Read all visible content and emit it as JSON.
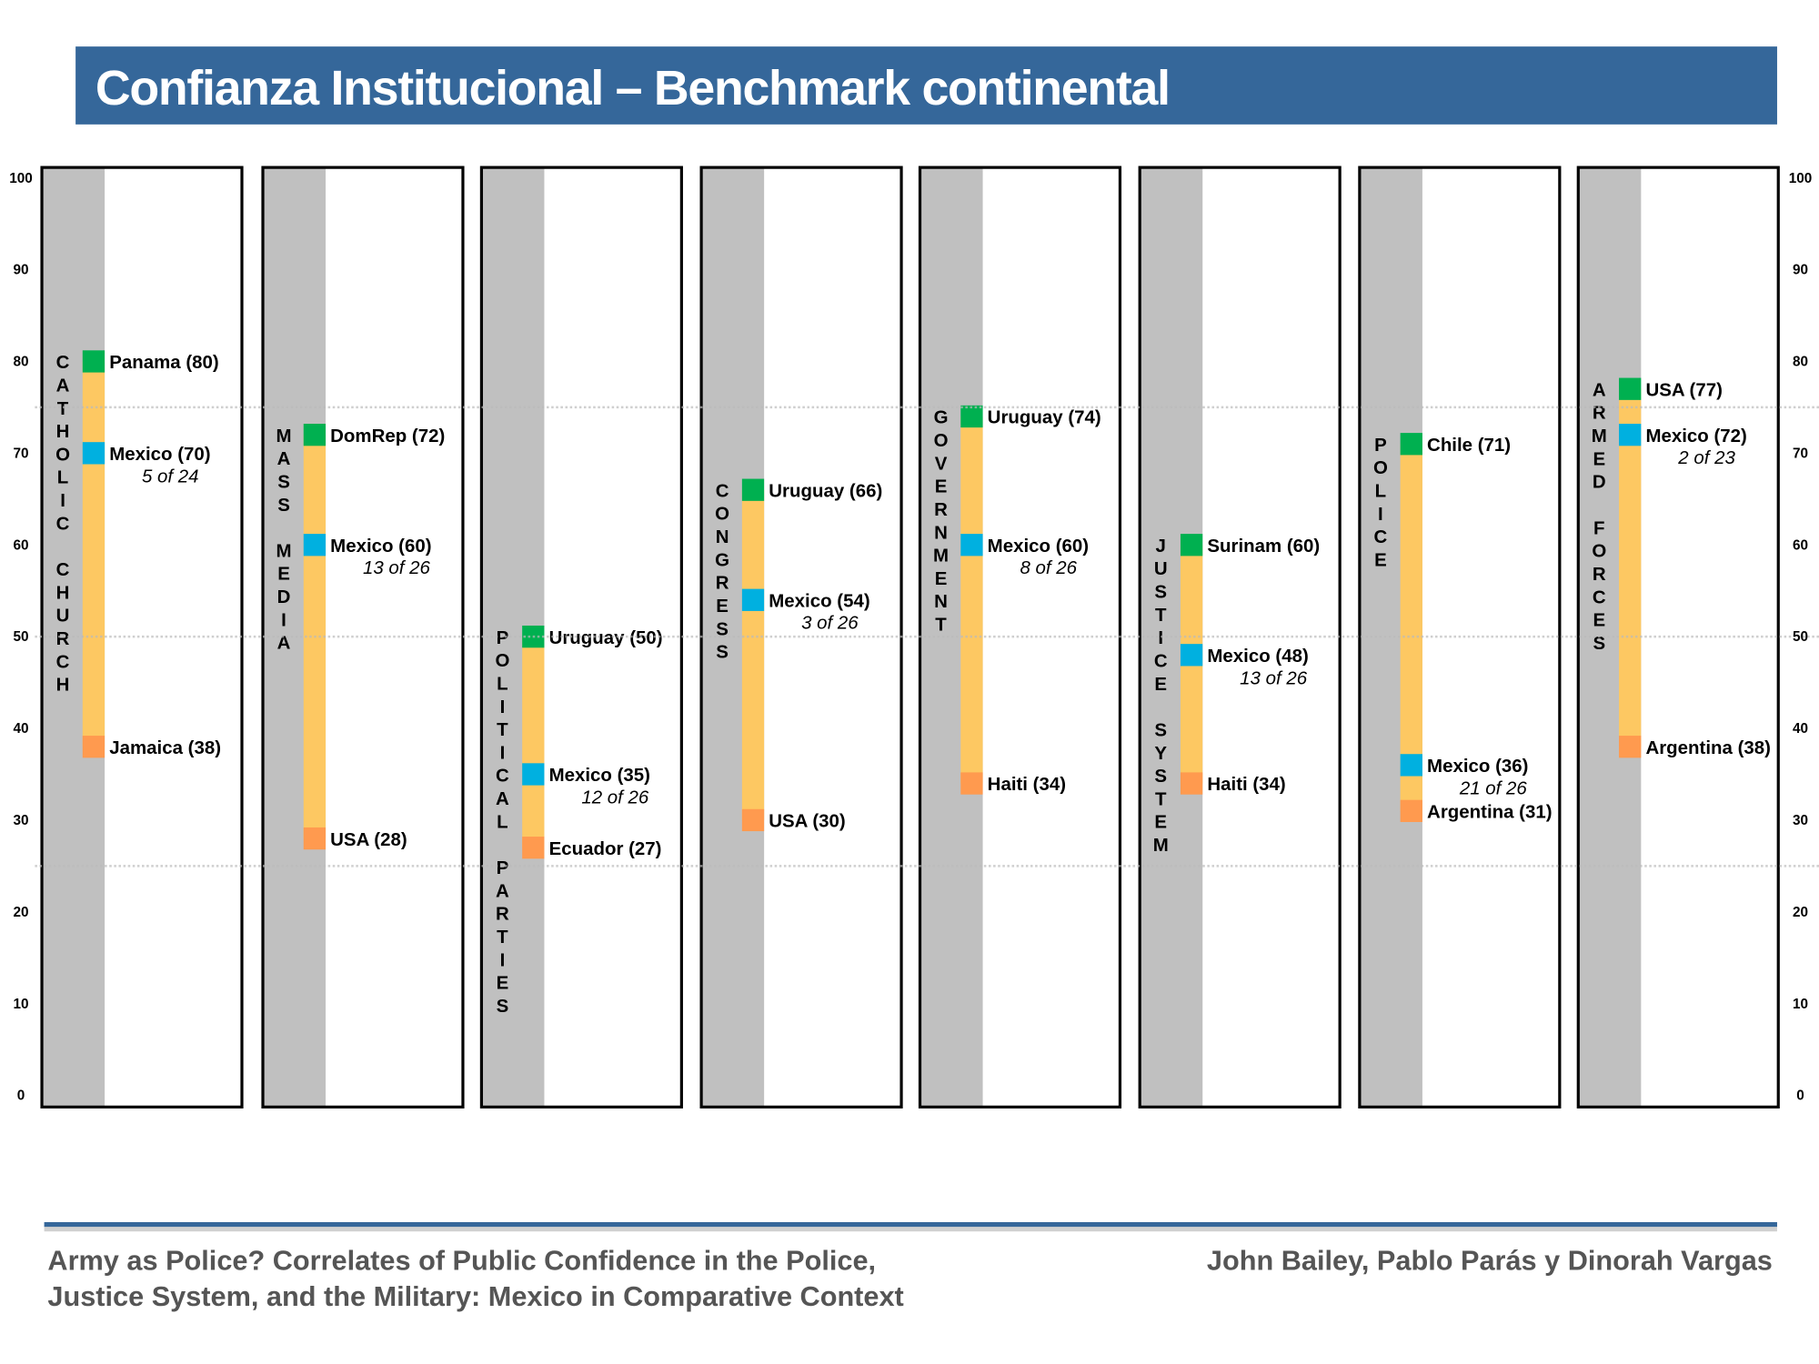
{
  "header": {
    "title": "Confianza Institucional – Benchmark continental"
  },
  "footer": {
    "source_line1": "Army as Police? Correlates of Public Confidence in the Police,",
    "source_line2": "Justice System, and the Military: Mexico in Comparative Context",
    "authors": "John Bailey, Pablo Parás y Dinorah Vargas"
  },
  "colors": {
    "header": "#35679a",
    "top": "#00b050",
    "mexico": "#00b0e0",
    "bottom": "#ff9a4f",
    "range": "#fdc862",
    "strip": "#c0c0c0"
  },
  "chart_data": {
    "type": "range-bar",
    "title": "Confianza Institucional – Benchmark continental",
    "ylim": [
      0,
      100
    ],
    "yticks": [
      0,
      10,
      20,
      30,
      40,
      50,
      60,
      70,
      80,
      90,
      100
    ],
    "reference_lines": [
      25,
      50,
      75
    ],
    "panels": [
      {
        "category": "CATHOLIC CHURCH",
        "top": {
          "country": "Panama",
          "value": 80
        },
        "mexico": {
          "country": "Mexico",
          "value": 70,
          "rank": "5 of 24"
        },
        "bottom": {
          "country": "Jamaica",
          "value": 38
        }
      },
      {
        "category": "MASS MEDIA",
        "top": {
          "country": "DomRep",
          "value": 72
        },
        "mexico": {
          "country": "Mexico",
          "value": 60,
          "rank": "13 of 26"
        },
        "bottom": {
          "country": "USA",
          "value": 28
        }
      },
      {
        "category": "POLITICAL PARTIES",
        "top": {
          "country": "Uruguay",
          "value": 50
        },
        "mexico": {
          "country": "Mexico",
          "value": 35,
          "rank": "12 of 26"
        },
        "bottom": {
          "country": "Ecuador",
          "value": 27
        }
      },
      {
        "category": "CONGRESS",
        "top": {
          "country": "Uruguay",
          "value": 66
        },
        "mexico": {
          "country": "Mexico",
          "value": 54,
          "rank": "3 of 26"
        },
        "bottom": {
          "country": "USA",
          "value": 30
        }
      },
      {
        "category": "GOVERNMENT",
        "top": {
          "country": "Uruguay",
          "value": 74
        },
        "mexico": {
          "country": "Mexico",
          "value": 60,
          "rank": "8 of 26"
        },
        "bottom": {
          "country": "Haiti",
          "value": 34
        }
      },
      {
        "category": "JUSTICE SYSTEM",
        "top": {
          "country": "Surinam",
          "value": 60
        },
        "mexico": {
          "country": "Mexico",
          "value": 48,
          "rank": "13 of 26"
        },
        "bottom": {
          "country": "Haiti",
          "value": 34
        }
      },
      {
        "category": "POLICE",
        "top": {
          "country": "Chile",
          "value": 71
        },
        "mexico": {
          "country": "Mexico",
          "value": 36,
          "rank": "21 of 26"
        },
        "bottom": {
          "country": "Argentina",
          "value": 31
        }
      },
      {
        "category": "ARMED FORCES",
        "top": {
          "country": "USA",
          "value": 77
        },
        "mexico": {
          "country": "Mexico",
          "value": 72,
          "rank": "2 of 23"
        },
        "bottom": {
          "country": "Argentina",
          "value": 38
        }
      }
    ]
  }
}
